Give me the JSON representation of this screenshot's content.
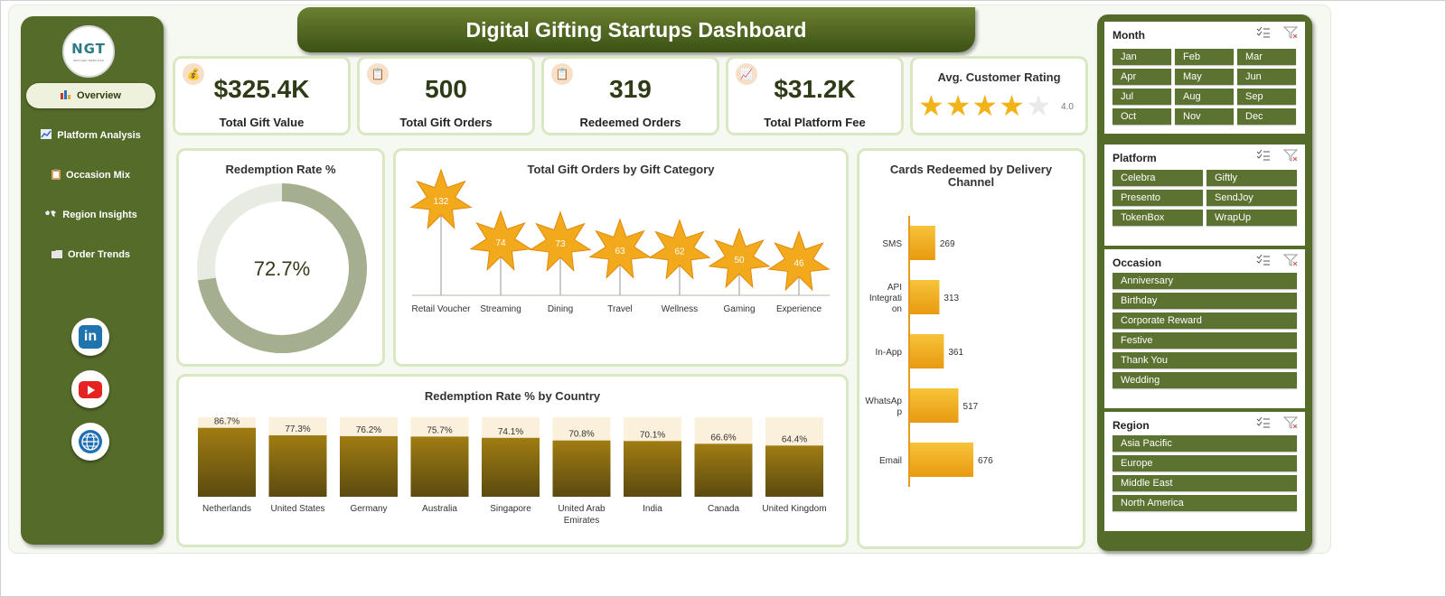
{
  "header": {
    "title": "Digital Gifting Startups Dashboard"
  },
  "logo": {
    "text": "NGT",
    "subtext": "NEXT GEN TEMPLATES"
  },
  "sidebar": {
    "items": [
      {
        "label": "Overview",
        "icon": "bar-chart-icon",
        "active": true
      },
      {
        "label": "Platform Analysis",
        "icon": "line-chart-icon",
        "active": false
      },
      {
        "label": "Occasion Mix",
        "icon": "clipboard-icon",
        "active": false
      },
      {
        "label": "Region Insights",
        "icon": "world-map-icon",
        "active": false
      },
      {
        "label": "Order Trends",
        "icon": "folder-icon",
        "active": false
      }
    ],
    "social": [
      {
        "name": "linkedin-icon",
        "text": "in"
      },
      {
        "name": "youtube-icon"
      },
      {
        "name": "globe-icon"
      }
    ]
  },
  "kpis": [
    {
      "value": "$325.4K",
      "label": "Total Gift Value",
      "icon": "money-bag-icon"
    },
    {
      "value": "500",
      "label": "Total Gift Orders",
      "icon": "clipboard-icon"
    },
    {
      "value": "319",
      "label": "Redeemed Orders",
      "icon": "clipboard-icon"
    },
    {
      "value": "$31.2K",
      "label": "Total Platform Fee",
      "icon": "trend-chart-icon"
    }
  ],
  "rating": {
    "label": "Avg. Customer Rating",
    "value": "4.0",
    "stars_filled": 4,
    "stars_total": 5
  },
  "colors": {
    "sidebar": "#556b2a",
    "accent_gold": "#f2b316",
    "donut": "#a5ae8e",
    "bar_brown": "#8a6a12"
  },
  "chart_data": [
    {
      "type": "pie",
      "title": "Redemption Rate %",
      "center_label": "72.7%",
      "values": [
        72.7,
        27.3
      ],
      "style": "donut"
    },
    {
      "type": "bar",
      "title": "Total Gift Orders by Gift Category",
      "style": "star-lollipop",
      "categories": [
        "Retail Voucher",
        "Streaming",
        "Dining",
        "Travel",
        "Wellness",
        "Gaming",
        "Experience"
      ],
      "values": [
        132,
        74,
        73,
        63,
        62,
        50,
        46
      ]
    },
    {
      "type": "bar",
      "title": "Cards Redeemed by Delivery Channel",
      "orientation": "horizontal",
      "categories": [
        "SMS",
        "API Integration",
        "In-App",
        "WhatsApp",
        "Email"
      ],
      "category_lines": [
        [
          "SMS"
        ],
        [
          "API",
          "Integrati",
          "on"
        ],
        [
          "In-App"
        ],
        [
          "WhatsAp",
          "p"
        ],
        [
          "Email"
        ]
      ],
      "values": [
        269,
        313,
        361,
        517,
        676
      ]
    },
    {
      "type": "bar",
      "title": "Redemption Rate % by Country",
      "categories": [
        "Netherlands",
        "United States",
        "Germany",
        "Australia",
        "Singapore",
        "United Arab Emirates",
        "India",
        "Canada",
        "United Kingdom"
      ],
      "category_lines": [
        [
          "Netherlands"
        ],
        [
          "United States"
        ],
        [
          "Germany"
        ],
        [
          "Australia"
        ],
        [
          "Singapore"
        ],
        [
          "United Arab",
          "Emirates"
        ],
        [
          "India"
        ],
        [
          "Canada"
        ],
        [
          "United Kingdom"
        ]
      ],
      "values": [
        86.7,
        77.3,
        76.2,
        75.7,
        74.1,
        70.8,
        70.1,
        66.6,
        64.4
      ],
      "labels": [
        "86.7%",
        "77.3%",
        "76.2%",
        "75.7%",
        "74.1%",
        "70.8%",
        "70.1%",
        "66.6%",
        "64.4%"
      ],
      "ylim": [
        0,
        100
      ]
    }
  ],
  "slicers": {
    "month": {
      "title": "Month",
      "items": [
        "Jan",
        "Feb",
        "Mar",
        "Apr",
        "May",
        "Jun",
        "Jul",
        "Aug",
        "Sep",
        "Oct",
        "Nov",
        "Dec"
      ]
    },
    "platform": {
      "title": "Platform",
      "items": [
        "Celebra",
        "Giftly",
        "Presento",
        "SendJoy",
        "TokenBox",
        "WrapUp"
      ]
    },
    "occasion": {
      "title": "Occasion",
      "items": [
        "Anniversary",
        "Birthday",
        "Corporate Reward",
        "Festive",
        "Thank You",
        "Wedding"
      ]
    },
    "region": {
      "title": "Region",
      "items": [
        "Asia Pacific",
        "Europe",
        "Middle East",
        "North America"
      ]
    }
  }
}
